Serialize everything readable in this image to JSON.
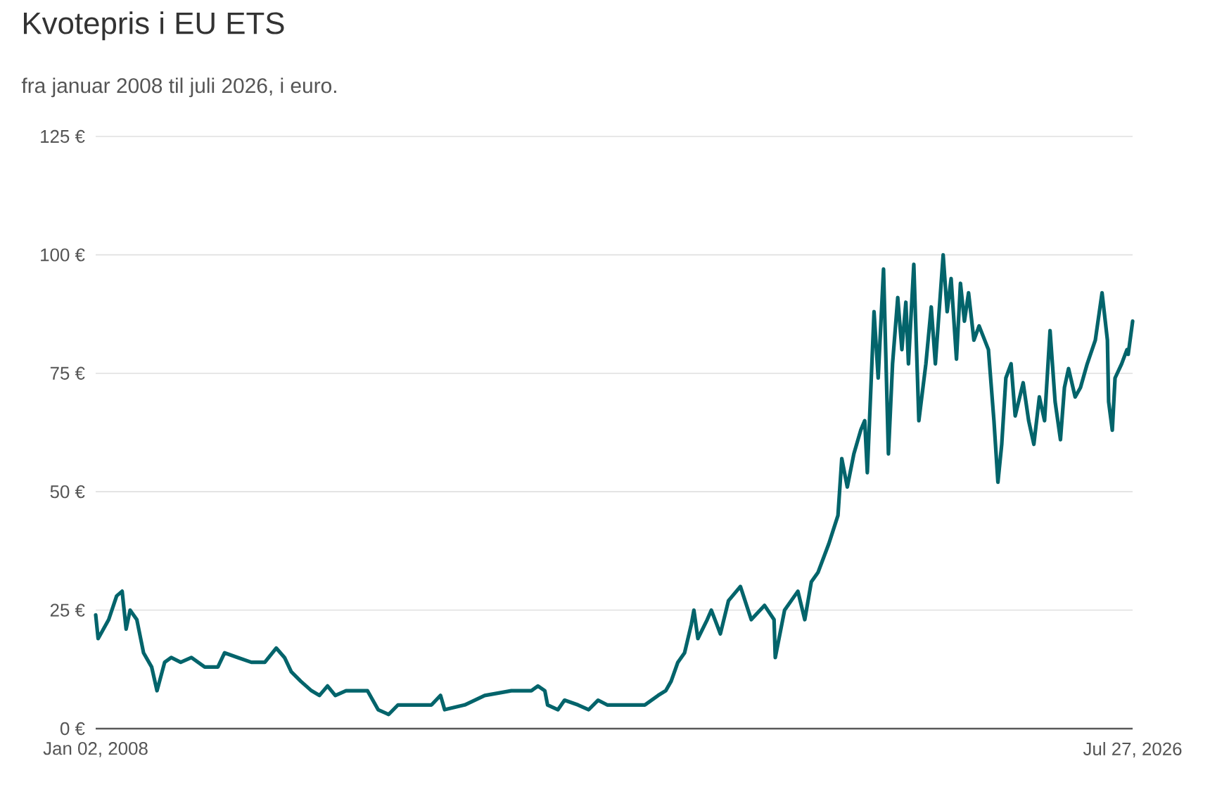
{
  "chart_data": {
    "type": "line",
    "title": "Kvotepris i EU ETS",
    "subtitle": "fra januar 2008 til juli 2026, i euro.",
    "color": "#03646b",
    "grid": "y",
    "xlim": [
      "2008-01-02",
      "2026-07-27"
    ],
    "xticks": [
      {
        "value": "2008-01-02",
        "label": "Jan 02, 2008"
      },
      {
        "value": "2026-07-27",
        "label": "Jul 27, 2026"
      }
    ],
    "ylim": [
      0,
      125
    ],
    "yticks": [
      {
        "value": 0,
        "label": "0 €"
      },
      {
        "value": 25,
        "label": "25 €"
      },
      {
        "value": 50,
        "label": "50 €"
      },
      {
        "value": 75,
        "label": "75 €"
      },
      {
        "value": 100,
        "label": "100 €"
      },
      {
        "value": 125,
        "label": "125 €"
      }
    ],
    "x": [
      "2008-01-02",
      "2008-01-18",
      "2008-03-27",
      "2008-05-18",
      "2008-06-23",
      "2008-07-19",
      "2008-08-14",
      "2008-09-27",
      "2008-11-10",
      "2009-01-02",
      "2009-02-06",
      "2009-03-28",
      "2009-05-10",
      "2009-07-11",
      "2009-09-19",
      "2009-12-15",
      "2010-03-11",
      "2010-04-24",
      "2010-07-20",
      "2010-10-16",
      "2011-01-12",
      "2011-03-28",
      "2011-05-21",
      "2011-07-04",
      "2011-09-04",
      "2011-11-13",
      "2012-01-04",
      "2012-02-26",
      "2012-04-17",
      "2012-06-26",
      "2012-08-18",
      "2012-11-13",
      "2013-01-22",
      "2013-04-01",
      "2013-06-01",
      "2013-07-14",
      "2014-01-06",
      "2014-03-06",
      "2014-04-02",
      "2014-08-11",
      "2014-12-20",
      "2015-06-12",
      "2015-10-21",
      "2015-12-03",
      "2016-01-17",
      "2016-02-04",
      "2016-04-12",
      "2016-05-25",
      "2016-08-21",
      "2016-10-30",
      "2016-12-30",
      "2017-02-28",
      "2017-05-09",
      "2017-08-05",
      "2017-11-01",
      "2018-01-27",
      "2018-03-18",
      "2018-04-22",
      "2018-06-05",
      "2018-07-19",
      "2018-09-01",
      "2018-09-18",
      "2018-10-14",
      "2018-12-14",
      "2019-01-10",
      "2019-03-10",
      "2019-05-02",
      "2019-07-19",
      "2019-09-28",
      "2019-12-24",
      "2020-02-24",
      "2020-03-03",
      "2020-05-03",
      "2020-07-29",
      "2020-09-12",
      "2020-10-25",
      "2020-12-08",
      "2021-02-16",
      "2021-04-17",
      "2021-05-12",
      "2021-06-17",
      "2021-07-30",
      "2021-09-13",
      "2021-10-09",
      "2021-10-26",
      "2021-12-09",
      "2022-01-05",
      "2022-02-09",
      "2022-03-13",
      "2022-04-09",
      "2022-05-13",
      "2022-06-09",
      "2022-07-05",
      "2022-07-22",
      "2022-08-26",
      "2022-09-28",
      "2022-11-13",
      "2022-12-18",
      "2023-01-14",
      "2023-03-06",
      "2023-04-01",
      "2023-04-27",
      "2023-06-01",
      "2023-06-27",
      "2023-07-23",
      "2023-08-19",
      "2023-09-23",
      "2023-10-27",
      "2023-12-27",
      "2024-02-01",
      "2024-02-27",
      "2024-03-23",
      "2024-04-19",
      "2024-05-23",
      "2024-06-19",
      "2024-08-10",
      "2024-09-15",
      "2024-10-19",
      "2024-11-24",
      "2024-12-28",
      "2025-02-02",
      "2025-03-07",
      "2025-04-11",
      "2025-05-07",
      "2025-06-03",
      "2025-07-16",
      "2025-08-20",
      "2025-10-03",
      "2025-11-25",
      "2026-01-08",
      "2026-02-12",
      "2026-02-20",
      "2026-03-16",
      "2026-04-03",
      "2026-05-16",
      "2026-06-20",
      "2026-06-28",
      "2026-07-27"
    ],
    "values": [
      24,
      19,
      23,
      28,
      29,
      21,
      25,
      23,
      16,
      13,
      8,
      14,
      15,
      14,
      15,
      13,
      13,
      16,
      15,
      14,
      14,
      17,
      15,
      12,
      10,
      8,
      7,
      9,
      7,
      8,
      8,
      8,
      4,
      3,
      5,
      5,
      5,
      7,
      4,
      5,
      7,
      8,
      8,
      9,
      8,
      5,
      4,
      6,
      5,
      4,
      6,
      5,
      5,
      5,
      5,
      7,
      8,
      10,
      14,
      16,
      22,
      25,
      19,
      23,
      25,
      20,
      27,
      30,
      23,
      26,
      23,
      15,
      25,
      29,
      23,
      31,
      33,
      39,
      45,
      57,
      51,
      58,
      63,
      65,
      54,
      88,
      74,
      97,
      58,
      77,
      91,
      80,
      90,
      77,
      98,
      65,
      77,
      89,
      77,
      100,
      88,
      95,
      78,
      94,
      86,
      92,
      82,
      85,
      80,
      65,
      52,
      60,
      74,
      77,
      66,
      73,
      65,
      60,
      70,
      65,
      84,
      69,
      61,
      72,
      76,
      70,
      72,
      77,
      82,
      92,
      82,
      69,
      63,
      74,
      77,
      80,
      79,
      86
    ]
  }
}
